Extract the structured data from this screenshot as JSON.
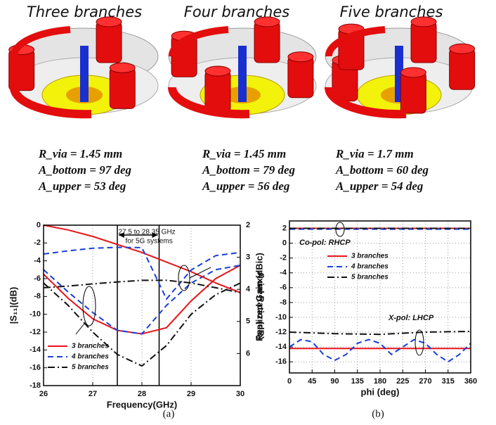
{
  "panels": [
    {
      "title": "Three branches",
      "lines": [
        "R_via = 1.45 mm",
        "A_bottom = 97 deg",
        "A_upper = 53 deg"
      ]
    },
    {
      "title": "Four branches",
      "lines": [
        "R_via = 1.45 mm",
        "A_bottom = 79 deg",
        "A_upper = 56 deg"
      ]
    },
    {
      "title": "Five branches",
      "lines": [
        "R_via = 1.7 mm",
        "A_bottom = 60 deg",
        "A_upper = 54 deg"
      ]
    }
  ],
  "captions": [
    "(a)",
    "(b)"
  ],
  "chart_data": [
    {
      "type": "line",
      "xlabel": "Frequency(GHz)",
      "ylabel": "|S₁₁|(dB)",
      "y2label": "Axial Ratio (dB)",
      "x": [
        26,
        26.5,
        27,
        27.5,
        28,
        28.5,
        29,
        29.5,
        30
      ],
      "xlim": [
        26,
        30
      ],
      "xticks": [
        26,
        27,
        28,
        29,
        30
      ],
      "ylim": [
        -18,
        0
      ],
      "yticks": [
        -18,
        -16,
        -14,
        -12,
        -10,
        -8,
        -6,
        -4,
        -2,
        0
      ],
      "y2lim": [
        7,
        2
      ],
      "y2ticks": [
        2,
        3,
        4,
        5,
        6
      ],
      "grid": true,
      "legend": "lower left",
      "highlight_band": [
        27.5,
        28.35
      ],
      "annotations": [
        "27.5 to 28.35 GHz",
        "for 5G systems"
      ],
      "series": [
        {
          "name": "3 branches",
          "color": "#e8141b",
          "linestyle": "solid",
          "values": [
            -5.5,
            -8.2,
            -10.5,
            -11.8,
            -12.2,
            -11.5,
            -8.5,
            -6,
            -4.5
          ]
        },
        {
          "name": "4 branches",
          "color": "#1a3fd8",
          "linestyle": "dashed",
          "values": [
            -5,
            -7.5,
            -9.8,
            -11.8,
            -12.2,
            -9,
            -6.5,
            -5,
            -4.5
          ]
        },
        {
          "name": "5 branches",
          "color": "#111111",
          "linestyle": "dashdot",
          "values": [
            -6.5,
            -9,
            -12,
            -14.5,
            -15.8,
            -13.5,
            -10,
            -7.8,
            -6.5
          ]
        },
        {
          "color": "#e8141b",
          "linestyle": "solid",
          "axis": "y2",
          "values": [
            2.0,
            2.15,
            2.35,
            2.6,
            2.85,
            3.15,
            3.45,
            3.8,
            4.1
          ]
        },
        {
          "color": "#1a3fd8",
          "linestyle": "dashed",
          "axis": "y2",
          "values": [
            2.9,
            2.8,
            2.72,
            2.69,
            2.7,
            4.3,
            3.4,
            2.95,
            2.85
          ]
        },
        {
          "color": "#111111",
          "linestyle": "dashdot",
          "axis": "y2",
          "values": [
            3.95,
            3.9,
            3.83,
            3.77,
            3.72,
            3.72,
            3.8,
            3.95,
            4.1
          ]
        }
      ]
    },
    {
      "type": "line",
      "xlabel": "phi (deg)",
      "ylabel": "Realized Gain (dBic)",
      "x": [
        0,
        22.5,
        45,
        67.5,
        90,
        112.5,
        135,
        157.5,
        180,
        202.5,
        225,
        247.5,
        270,
        292.5,
        315,
        337.5,
        360
      ],
      "xlim": [
        0,
        360
      ],
      "xticks": [
        0,
        45,
        90,
        135,
        180,
        225,
        270,
        315,
        360
      ],
      "ylim": [
        -17.5,
        3
      ],
      "yticks": [
        -16,
        -14,
        -12,
        -10,
        -8,
        -6,
        -4,
        -2,
        0,
        2
      ],
      "grid": true,
      "legend": "upper center",
      "annotations": [
        "Co-pol: RHCP",
        "X-pol: LHCP"
      ],
      "series": [
        {
          "name": "3 branches",
          "color": "#e8141b",
          "linestyle": "solid",
          "x": [
            0,
            360
          ],
          "values": [
            2,
            2
          ]
        },
        {
          "name": "4 branches",
          "color": "#1a3fd8",
          "linestyle": "dashed",
          "x": [
            0,
            360
          ],
          "values": [
            1.9,
            1.9
          ]
        },
        {
          "name": "5 branches",
          "color": "#111111",
          "linestyle": "dashdot",
          "x": [
            0,
            360
          ],
          "values": [
            2,
            2
          ]
        },
        {
          "color": "#e8141b",
          "linestyle": "solid",
          "x": [
            0,
            360
          ],
          "values": [
            -14.2,
            -14.2
          ]
        },
        {
          "color": "#1a3fd8",
          "linestyle": "dashed",
          "values": [
            -14,
            -13,
            -13.3,
            -15,
            -15.8,
            -15,
            -13.5,
            -13,
            -13.5,
            -15,
            -14,
            -13,
            -13.5,
            -15,
            -16,
            -15,
            -13.5
          ]
        },
        {
          "color": "#111111",
          "linestyle": "dashdot",
          "x": [
            0,
            90,
            180,
            270,
            360
          ],
          "values": [
            -12,
            -12.2,
            -12.3,
            -12,
            -11.9
          ]
        }
      ]
    }
  ]
}
